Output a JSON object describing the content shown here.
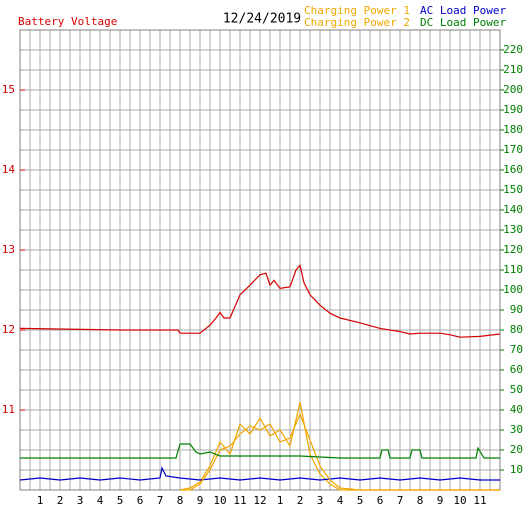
{
  "chart_data": {
    "type": "line",
    "title": "12/24/2019",
    "xlim": [
      0,
      24
    ],
    "xticks": [
      1,
      2,
      3,
      4,
      5,
      6,
      7,
      8,
      9,
      10,
      11,
      12,
      {
        "value": 13,
        "label": "1"
      },
      {
        "value": 14,
        "label": "2"
      },
      {
        "value": 15,
        "label": "3"
      },
      {
        "value": 16,
        "label": "4"
      },
      {
        "value": 17,
        "label": "5"
      },
      {
        "value": 18,
        "label": "6"
      },
      {
        "value": 19,
        "label": "7"
      },
      {
        "value": 20,
        "label": "8"
      },
      {
        "value": 21,
        "label": "9"
      },
      {
        "value": 22,
        "label": "10"
      },
      {
        "value": 23,
        "label": "11"
      }
    ],
    "xgrid": [
      0.5,
      1.5,
      2.5,
      3.5,
      4.5,
      5.5,
      6.5,
      7.5,
      8.5,
      9.5,
      10.5,
      11.5,
      12.5,
      13.5,
      14.5,
      15.5,
      16.5,
      17.5,
      18.5,
      19.5,
      20.5,
      21.5,
      22.5,
      23.5
    ],
    "ylim": [
      10,
      15.75
    ],
    "yticks": [
      11,
      12,
      13,
      14,
      15
    ],
    "y2lim": [
      0,
      230
    ],
    "y2ticks": [
      10,
      20,
      30,
      40,
      50,
      60,
      70,
      80,
      90,
      100,
      110,
      120,
      130,
      140,
      150,
      160,
      170,
      180,
      190,
      200,
      210,
      220
    ],
    "grid": true,
    "series": [
      {
        "name": "Battery Voltage",
        "color": "#d40000",
        "x": [
          0,
          5,
          7.9,
          8,
          9,
          9.5,
          9.8,
          10,
          10.2,
          10.5,
          11,
          11.5,
          12,
          12.3,
          12.5,
          12.7,
          13,
          13.5,
          13.8,
          14,
          14.2,
          14.5,
          15,
          15.5,
          16,
          17,
          18,
          19,
          19.5,
          20,
          21,
          21.5,
          22,
          23,
          24
        ],
        "values": [
          12.02,
          12.0,
          12.0,
          11.96,
          11.96,
          12.06,
          12.15,
          12.22,
          12.15,
          12.15,
          12.44,
          12.56,
          12.69,
          12.71,
          12.56,
          12.62,
          12.52,
          12.54,
          12.75,
          12.81,
          12.59,
          12.44,
          12.31,
          12.21,
          12.15,
          12.09,
          12.02,
          11.98,
          11.95,
          11.96,
          11.96,
          11.94,
          11.91,
          11.92,
          11.95
        ]
      },
      {
        "name": "Charging Power 1",
        "color": "#f0a800",
        "axis": "y2",
        "x": [
          8,
          8.5,
          9,
          9.5,
          10,
          10.5,
          11,
          11.5,
          12,
          12.5,
          13,
          13.5,
          14,
          14.5,
          15,
          15.5,
          16,
          17,
          24
        ],
        "values": [
          0,
          1,
          4,
          12,
          24,
          18,
          33,
          28,
          36,
          27,
          30,
          22,
          44,
          18,
          8,
          3,
          0,
          0,
          0
        ]
      },
      {
        "name": "AC Load Power",
        "color": "#0000c8",
        "axis": "y2",
        "x": [
          0,
          1,
          2,
          3,
          4,
          5,
          6,
          7,
          7.1,
          7.3,
          8,
          9,
          10,
          11,
          12,
          13,
          14,
          15,
          16,
          17,
          18,
          19,
          20,
          21,
          22,
          23,
          24
        ],
        "values": [
          5,
          6,
          5,
          6,
          5,
          6,
          5,
          6,
          11,
          7,
          6,
          5,
          6,
          5,
          6,
          5,
          6,
          5,
          6,
          5,
          6,
          5,
          6,
          5,
          6,
          5,
          5
        ]
      },
      {
        "name": "Charging Power 2",
        "color": "#f0a800",
        "axis": "y2",
        "x": [
          8,
          8.5,
          9,
          9.5,
          10,
          10.5,
          11,
          11.5,
          12,
          12.5,
          13,
          13.5,
          14,
          14.5,
          15,
          15.5,
          16,
          17,
          24
        ],
        "values": [
          0,
          0,
          3,
          10,
          20,
          22,
          28,
          32,
          30,
          33,
          24,
          26,
          38,
          25,
          12,
          5,
          1,
          0,
          0
        ]
      },
      {
        "name": "DC Load Power",
        "color": "#008000",
        "axis": "y2",
        "x": [
          0,
          7.8,
          8,
          8.5,
          8.8,
          9,
          9.5,
          10,
          12,
          14,
          16,
          18,
          18.1,
          18.4,
          18.5,
          19.5,
          19.6,
          20,
          20.1,
          22.8,
          22.9,
          23.2,
          24
        ],
        "values": [
          16,
          16,
          23,
          23,
          19,
          18,
          19,
          17,
          17,
          17,
          16,
          16,
          20,
          20,
          16,
          16,
          20,
          20,
          16,
          16,
          21,
          16,
          16
        ]
      }
    ]
  }
}
